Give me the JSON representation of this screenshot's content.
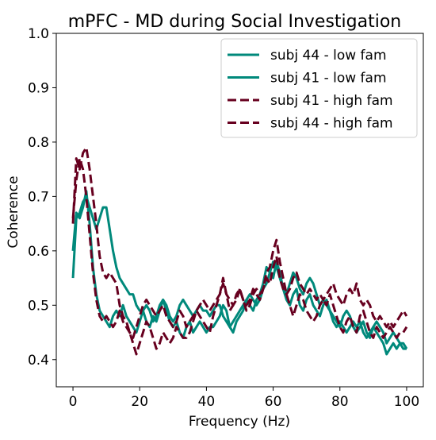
{
  "chart_data": {
    "type": "line",
    "title": "mPFC - MD during Social Investigation",
    "xlabel": "Frequency (Hz)",
    "ylabel": "Coherence",
    "xlim": [
      -5,
      105
    ],
    "ylim": [
      0.35,
      1.0
    ],
    "xticks": [
      0,
      20,
      40,
      60,
      80,
      100
    ],
    "yticks": [
      0.4,
      0.5,
      0.6,
      0.7,
      0.8,
      0.9,
      1.0
    ],
    "xtick_labels": [
      "0",
      "20",
      "40",
      "60",
      "80",
      "100"
    ],
    "ytick_labels": [
      "0.4",
      "0.5",
      "0.6",
      "0.7",
      "0.8",
      "0.9",
      "1.0"
    ],
    "grid": false,
    "legend_position": "top-right",
    "series": [
      {
        "name": "subj 44 - low fam",
        "color": "#00897b",
        "dashed": false,
        "x": [
          0,
          1,
          2,
          3,
          4,
          5,
          6,
          7,
          8,
          9,
          10,
          11,
          12,
          13,
          14,
          15,
          16,
          17,
          18,
          19,
          20,
          21,
          22,
          23,
          24,
          25,
          26,
          27,
          28,
          29,
          30,
          31,
          32,
          33,
          34,
          35,
          36,
          37,
          38,
          39,
          40,
          41,
          42,
          43,
          44,
          45,
          46,
          47,
          48,
          49,
          50,
          51,
          52,
          53,
          54,
          55,
          56,
          57,
          58,
          59,
          60,
          61,
          62,
          63,
          64,
          65,
          66,
          67,
          68,
          69,
          70,
          71,
          72,
          73,
          74,
          75,
          76,
          77,
          78,
          79,
          80,
          81,
          82,
          83,
          84,
          85,
          86,
          87,
          88,
          89,
          90,
          91,
          92,
          93,
          94,
          95,
          96,
          97,
          98,
          99,
          100
        ],
        "values": [
          0.55,
          0.66,
          0.67,
          0.69,
          0.7,
          0.68,
          0.66,
          0.64,
          0.66,
          0.68,
          0.68,
          0.64,
          0.6,
          0.57,
          0.55,
          0.54,
          0.53,
          0.52,
          0.52,
          0.5,
          0.49,
          0.49,
          0.5,
          0.49,
          0.47,
          0.48,
          0.5,
          0.51,
          0.5,
          0.48,
          0.47,
          0.48,
          0.5,
          0.51,
          0.5,
          0.49,
          0.48,
          0.49,
          0.5,
          0.49,
          0.49,
          0.48,
          0.49,
          0.5,
          0.5,
          0.48,
          0.47,
          0.46,
          0.47,
          0.48,
          0.49,
          0.5,
          0.51,
          0.52,
          0.51,
          0.5,
          0.51,
          0.53,
          0.54,
          0.56,
          0.58,
          0.57,
          0.55,
          0.53,
          0.52,
          0.54,
          0.56,
          0.55,
          0.53,
          0.52,
          0.54,
          0.55,
          0.54,
          0.52,
          0.5,
          0.51,
          0.5,
          0.49,
          0.48,
          0.47,
          0.46,
          0.48,
          0.49,
          0.48,
          0.46,
          0.45,
          0.46,
          0.47,
          0.45,
          0.44,
          0.46,
          0.47,
          0.46,
          0.45,
          0.43,
          0.44,
          0.45,
          0.44,
          0.43,
          0.42,
          0.42
        ]
      },
      {
        "name": "subj 41 - low fam",
        "color": "#00897b",
        "dashed": false,
        "x": [
          0,
          1,
          2,
          3,
          4,
          5,
          6,
          7,
          8,
          9,
          10,
          11,
          12,
          13,
          14,
          15,
          16,
          17,
          18,
          19,
          20,
          21,
          22,
          23,
          24,
          25,
          26,
          27,
          28,
          29,
          30,
          31,
          32,
          33,
          34,
          35,
          36,
          37,
          38,
          39,
          40,
          41,
          42,
          43,
          44,
          45,
          46,
          47,
          48,
          49,
          50,
          51,
          52,
          53,
          54,
          55,
          56,
          57,
          58,
          59,
          60,
          61,
          62,
          63,
          64,
          65,
          66,
          67,
          68,
          69,
          70,
          71,
          72,
          73,
          74,
          75,
          76,
          77,
          78,
          79,
          80,
          81,
          82,
          83,
          84,
          85,
          86,
          87,
          88,
          89,
          90,
          91,
          92,
          93,
          94,
          95,
          96,
          97,
          98,
          99,
          100
        ],
        "values": [
          0.6,
          0.67,
          0.66,
          0.68,
          0.71,
          0.65,
          0.57,
          0.52,
          0.49,
          0.48,
          0.47,
          0.46,
          0.48,
          0.49,
          0.48,
          0.5,
          0.48,
          0.47,
          0.46,
          0.45,
          0.47,
          0.49,
          0.47,
          0.46,
          0.48,
          0.47,
          0.49,
          0.51,
          0.49,
          0.47,
          0.46,
          0.47,
          0.45,
          0.44,
          0.46,
          0.47,
          0.45,
          0.46,
          0.47,
          0.46,
          0.45,
          0.46,
          0.46,
          0.47,
          0.48,
          0.5,
          0.49,
          0.46,
          0.45,
          0.47,
          0.48,
          0.49,
          0.51,
          0.5,
          0.49,
          0.51,
          0.52,
          0.54,
          0.57,
          0.56,
          0.55,
          0.58,
          0.56,
          0.53,
          0.51,
          0.5,
          0.52,
          0.53,
          0.5,
          0.49,
          0.51,
          0.52,
          0.5,
          0.49,
          0.48,
          0.5,
          0.51,
          0.49,
          0.47,
          0.46,
          0.47,
          0.46,
          0.45,
          0.46,
          0.47,
          0.46,
          0.47,
          0.45,
          0.44,
          0.45,
          0.46,
          0.45,
          0.44,
          0.43,
          0.41,
          0.42,
          0.43,
          0.42,
          0.43,
          0.43,
          0.42
        ]
      },
      {
        "name": "subj 41 - high fam",
        "color": "#67001f",
        "dashed": true,
        "x": [
          0,
          1,
          2,
          3,
          4,
          5,
          6,
          7,
          8,
          9,
          10,
          11,
          12,
          13,
          14,
          15,
          16,
          17,
          18,
          19,
          20,
          21,
          22,
          23,
          24,
          25,
          26,
          27,
          28,
          29,
          30,
          31,
          32,
          33,
          34,
          35,
          36,
          37,
          38,
          39,
          40,
          41,
          42,
          43,
          44,
          45,
          46,
          47,
          48,
          49,
          50,
          51,
          52,
          53,
          54,
          55,
          56,
          57,
          58,
          59,
          60,
          61,
          62,
          63,
          64,
          65,
          66,
          67,
          68,
          69,
          70,
          71,
          72,
          73,
          74,
          75,
          76,
          77,
          78,
          79,
          80,
          81,
          82,
          83,
          84,
          85,
          86,
          87,
          88,
          89,
          90,
          91,
          92,
          93,
          94,
          95,
          96,
          97,
          98,
          99,
          100
        ],
        "values": [
          0.65,
          0.77,
          0.75,
          0.78,
          0.79,
          0.75,
          0.7,
          0.65,
          0.59,
          0.56,
          0.55,
          0.56,
          0.55,
          0.54,
          0.5,
          0.48,
          0.47,
          0.45,
          0.43,
          0.41,
          0.43,
          0.45,
          0.47,
          0.46,
          0.44,
          0.42,
          0.43,
          0.45,
          0.44,
          0.43,
          0.44,
          0.46,
          0.45,
          0.44,
          0.44,
          0.45,
          0.47,
          0.49,
          0.48,
          0.47,
          0.46,
          0.45,
          0.48,
          0.5,
          0.52,
          0.55,
          0.52,
          0.49,
          0.5,
          0.52,
          0.53,
          0.51,
          0.49,
          0.5,
          0.52,
          0.53,
          0.52,
          0.53,
          0.56,
          0.57,
          0.6,
          0.62,
          0.58,
          0.55,
          0.52,
          0.5,
          0.48,
          0.5,
          0.52,
          0.51,
          0.49,
          0.48,
          0.47,
          0.48,
          0.5,
          0.51,
          0.5,
          0.52,
          0.5,
          0.48,
          0.46,
          0.45,
          0.47,
          0.48,
          0.46,
          0.45,
          0.48,
          0.49,
          0.47,
          0.45,
          0.44,
          0.46,
          0.45,
          0.44,
          0.45,
          0.46,
          0.45,
          0.44,
          0.45,
          0.45,
          0.46
        ]
      },
      {
        "name": "subj 44 - high fam",
        "color": "#67001f",
        "dashed": true,
        "x": [
          0,
          1,
          2,
          3,
          4,
          5,
          6,
          7,
          8,
          9,
          10,
          11,
          12,
          13,
          14,
          15,
          16,
          17,
          18,
          19,
          20,
          21,
          22,
          23,
          24,
          25,
          26,
          27,
          28,
          29,
          30,
          31,
          32,
          33,
          34,
          35,
          36,
          37,
          38,
          39,
          40,
          41,
          42,
          43,
          44,
          45,
          46,
          47,
          48,
          49,
          50,
          51,
          52,
          53,
          54,
          55,
          56,
          57,
          58,
          59,
          60,
          61,
          62,
          63,
          64,
          65,
          66,
          67,
          68,
          69,
          70,
          71,
          72,
          73,
          74,
          75,
          76,
          77,
          78,
          79,
          80,
          81,
          82,
          83,
          84,
          85,
          86,
          87,
          88,
          89,
          90,
          91,
          92,
          93,
          94,
          95,
          96,
          97,
          98,
          99,
          100
        ],
        "values": [
          0.66,
          0.73,
          0.77,
          0.75,
          0.7,
          0.63,
          0.56,
          0.51,
          0.48,
          0.47,
          0.48,
          0.47,
          0.46,
          0.47,
          0.49,
          0.47,
          0.46,
          0.45,
          0.44,
          0.46,
          0.48,
          0.5,
          0.51,
          0.5,
          0.49,
          0.48,
          0.49,
          0.5,
          0.48,
          0.47,
          0.46,
          0.47,
          0.49,
          0.48,
          0.46,
          0.47,
          0.48,
          0.49,
          0.5,
          0.51,
          0.5,
          0.49,
          0.5,
          0.51,
          0.52,
          0.54,
          0.52,
          0.51,
          0.5,
          0.51,
          0.53,
          0.51,
          0.5,
          0.51,
          0.53,
          0.52,
          0.51,
          0.53,
          0.55,
          0.54,
          0.57,
          0.59,
          0.55,
          0.53,
          0.52,
          0.53,
          0.55,
          0.56,
          0.54,
          0.53,
          0.52,
          0.53,
          0.52,
          0.51,
          0.52,
          0.51,
          0.52,
          0.53,
          0.54,
          0.52,
          0.51,
          0.5,
          0.52,
          0.53,
          0.52,
          0.54,
          0.51,
          0.5,
          0.51,
          0.5,
          0.48,
          0.47,
          0.48,
          0.47,
          0.46,
          0.47,
          0.46,
          0.47,
          0.48,
          0.49,
          0.48
        ]
      }
    ]
  }
}
